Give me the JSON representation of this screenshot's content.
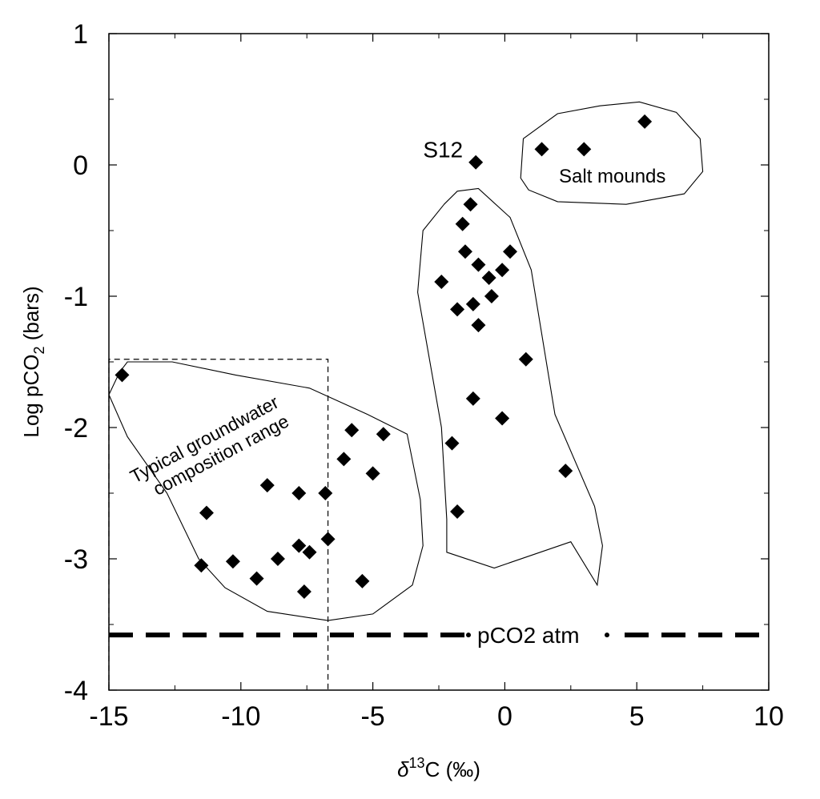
{
  "chart_data": {
    "type": "scatter",
    "xlabel": {
      "pre": "δ",
      "sup": "13",
      "post": "C (‰)"
    },
    "ylabel": {
      "pre": "Log pCO",
      "sub": "2",
      "post": " (bars)"
    },
    "xlim": [
      -15,
      10
    ],
    "ylim": [
      -4,
      1
    ],
    "xticks": [
      -15,
      -10,
      -5,
      0,
      5,
      10
    ],
    "yticks": [
      -4,
      -3,
      -2,
      -1,
      0,
      1
    ],
    "grid": false,
    "points": [
      {
        "x": -14.5,
        "y": -1.6
      },
      {
        "x": -11.3,
        "y": -2.65
      },
      {
        "x": -11.5,
        "y": -3.05
      },
      {
        "x": -10.3,
        "y": -3.02
      },
      {
        "x": -9.4,
        "y": -3.15
      },
      {
        "x": -9.0,
        "y": -2.44
      },
      {
        "x": -8.6,
        "y": -3.0
      },
      {
        "x": -7.8,
        "y": -2.5
      },
      {
        "x": -7.8,
        "y": -2.9
      },
      {
        "x": -7.6,
        "y": -3.25
      },
      {
        "x": -7.4,
        "y": -2.95
      },
      {
        "x": -6.8,
        "y": -2.5
      },
      {
        "x": -6.7,
        "y": -2.85
      },
      {
        "x": -6.1,
        "y": -2.24
      },
      {
        "x": -5.8,
        "y": -2.02
      },
      {
        "x": -5.4,
        "y": -3.17
      },
      {
        "x": -5.0,
        "y": -2.35
      },
      {
        "x": -4.6,
        "y": -2.05
      },
      {
        "x": -2.4,
        "y": -0.89
      },
      {
        "x": -2.0,
        "y": -2.12
      },
      {
        "x": -1.8,
        "y": -1.1
      },
      {
        "x": -1.8,
        "y": -2.64
      },
      {
        "x": -1.6,
        "y": -0.45
      },
      {
        "x": -1.5,
        "y": -0.66
      },
      {
        "x": -1.3,
        "y": -0.3
      },
      {
        "x": -1.2,
        "y": -1.06
      },
      {
        "x": -1.2,
        "y": -1.78
      },
      {
        "x": -1.0,
        "y": -0.76
      },
      {
        "x": -1.0,
        "y": -1.22
      },
      {
        "x": -0.6,
        "y": -0.86
      },
      {
        "x": -0.5,
        "y": -1.0
      },
      {
        "x": -0.1,
        "y": -0.8
      },
      {
        "x": -0.1,
        "y": -1.93
      },
      {
        "x": 0.2,
        "y": -0.66
      },
      {
        "x": 0.8,
        "y": -1.48
      },
      {
        "x": 2.3,
        "y": -2.33
      },
      {
        "x": -1.1,
        "y": 0.02
      },
      {
        "x": 1.4,
        "y": 0.12
      },
      {
        "x": 3.0,
        "y": 0.12
      },
      {
        "x": 5.3,
        "y": 0.33
      }
    ],
    "reference_line": {
      "label": "pCO2 atm",
      "y": -3.58
    },
    "annotations": {
      "point_label": {
        "text": "S12",
        "x": -1.1,
        "y": 0.02
      },
      "salt_mounds": {
        "text": "Salt mounds"
      },
      "typical_range": {
        "line1": "Typical groundwater",
        "line2": "composition range",
        "xlim": [
          -15,
          -6.7
        ],
        "ylim": [
          -4,
          -1.48
        ]
      }
    },
    "regions": [
      {
        "name": "salt-mounds",
        "polygon": [
          [
            0.7,
            0.2
          ],
          [
            2.0,
            0.39
          ],
          [
            3.6,
            0.45
          ],
          [
            5.1,
            0.48
          ],
          [
            6.5,
            0.4
          ],
          [
            7.4,
            0.2
          ],
          [
            7.5,
            -0.05
          ],
          [
            6.8,
            -0.22
          ],
          [
            4.6,
            -0.3
          ],
          [
            2.0,
            -0.28
          ],
          [
            0.9,
            -0.19
          ],
          [
            0.6,
            -0.1
          ]
        ]
      },
      {
        "name": "middle-group",
        "polygon": [
          [
            -2.3,
            -0.3
          ],
          [
            -1.8,
            -0.2
          ],
          [
            -1.0,
            -0.18
          ],
          [
            0.2,
            -0.4
          ],
          [
            1.0,
            -0.8
          ],
          [
            1.9,
            -1.9
          ],
          [
            3.4,
            -2.6
          ],
          [
            3.7,
            -2.9
          ],
          [
            3.5,
            -3.2
          ],
          [
            2.5,
            -2.87
          ],
          [
            -0.4,
            -3.07
          ],
          [
            -2.2,
            -2.95
          ],
          [
            -2.2,
            -2.7
          ],
          [
            -2.4,
            -2.0
          ],
          [
            -3.3,
            -0.97
          ],
          [
            -3.1,
            -0.5
          ]
        ]
      },
      {
        "name": "left-group",
        "polygon": [
          [
            -15.0,
            -1.75
          ],
          [
            -14.6,
            -1.58
          ],
          [
            -14.3,
            -1.5
          ],
          [
            -12.6,
            -1.5
          ],
          [
            -10.2,
            -1.6
          ],
          [
            -7.4,
            -1.7
          ],
          [
            -5.2,
            -1.9
          ],
          [
            -3.7,
            -2.05
          ],
          [
            -3.2,
            -2.55
          ],
          [
            -3.1,
            -2.9
          ],
          [
            -3.5,
            -3.2
          ],
          [
            -5.0,
            -3.42
          ],
          [
            -6.7,
            -3.47
          ],
          [
            -9.0,
            -3.4
          ],
          [
            -10.6,
            -3.22
          ],
          [
            -11.6,
            -3.0
          ],
          [
            -12.8,
            -2.5
          ],
          [
            -14.3,
            -2.07
          ]
        ]
      }
    ]
  }
}
